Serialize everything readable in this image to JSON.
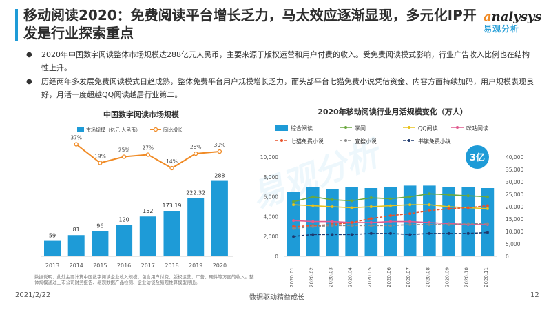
{
  "header": {
    "title": "移动阅读2020：免费阅读平台增长乏力，马太效应逐渐显现，多元化IP开发是行业探索重点",
    "logo_text_a": "a",
    "logo_text_rest": "nalysys",
    "logo_cn": "易观分析"
  },
  "bullets": [
    "2020年中国数字阅读整体市场规模达288亿元人民币，主要来源于版权运营和用户付费的收入。受免费阅读模式影响，行业广告收入比例也在结构性上升。",
    "历经两年多发展免费阅读模式日趋成熟，整体免费平台用户规模增长乏力，而头部平台七猫免费小说凭借资金、内容方面持续加码，用户规模表现良好，月活一度超越QQ阅读越居行业第二。"
  ],
  "watermark": "易观分析",
  "footer": {
    "date": "2021/2/22",
    "center": "数据驱动精益成长",
    "page": "12"
  },
  "note": "数据说明：此处主要计算中国数字阅读企业收入规模，包含用户付费、版权运营、广告、硬件等方面的收入。整体规模通过上市公司财务报告、易观数据产品检测、企业访谈及易观推算模型得出。",
  "colors": {
    "blue": "#1e9bd7",
    "orange": "#f08a24",
    "green": "#6aa83e",
    "yellow": "#e8c21b",
    "pink": "#e05a8e",
    "red_orange": "#e8532c",
    "gray": "#8a8a8a",
    "navy": "#1f3a6e"
  },
  "chart_data": [
    {
      "type": "bar",
      "title": "中国数字阅读市场规模",
      "categories": [
        "2013",
        "2014",
        "2015",
        "2016",
        "2017",
        "2018",
        "2019",
        "2020"
      ],
      "series": [
        {
          "name": "市场规模（亿元 人民币）",
          "values": [
            59,
            81,
            96,
            120,
            152,
            173.19,
            222.32,
            288
          ]
        },
        {
          "name": "同比增长",
          "type": "line",
          "values": [
            37,
            19,
            25,
            27,
            14,
            28,
            30
          ],
          "x": [
            "2014",
            "2015",
            "2016",
            "2017",
            "2018",
            "2019",
            "2020"
          ],
          "unit": "%"
        }
      ],
      "value_labels": [
        "59",
        "81",
        "96",
        "120",
        "152",
        "173.19",
        "222.32",
        "288"
      ],
      "growth_labels": [
        "37%",
        "19%",
        "25%",
        "27%",
        "14%",
        "28%",
        "30%"
      ],
      "ylim": [
        0,
        300
      ]
    },
    {
      "type": "bar",
      "title": "2020年移动阅读行业月活规模变化（万人）",
      "categories": [
        "2020.01",
        "2020.02",
        "2020.03",
        "2020.04",
        "2020.05",
        "2020.06",
        "2020.07",
        "2020.08",
        "2020.09",
        "2020.10",
        "2020.11"
      ],
      "series": [
        {
          "name": "综合阅读",
          "axis": "right",
          "values": [
            26000,
            28000,
            27000,
            28000,
            27500,
            28000,
            28500,
            28500,
            28000,
            28000,
            27500
          ]
        },
        {
          "name": "掌阅",
          "axis": "left",
          "values": [
            5500,
            6000,
            5700,
            5600,
            5900,
            5800,
            6000,
            6300,
            6200,
            6100,
            6000
          ]
        },
        {
          "name": "QQ阅读",
          "axis": "left",
          "values": [
            5200,
            5100,
            5000,
            4900,
            5000,
            5100,
            5200,
            5200,
            5000,
            4900,
            4800
          ]
        },
        {
          "name": "咪咕阅读",
          "axis": "left",
          "values": [
            3600,
            3500,
            3500,
            3400,
            3400,
            3500,
            3500,
            3400,
            3300,
            3200,
            3200
          ]
        },
        {
          "name": "七猫免费小说",
          "axis": "left",
          "values": [
            3000,
            3100,
            3200,
            3400,
            3800,
            4100,
            4300,
            4600,
            4800,
            4900,
            5100
          ]
        },
        {
          "name": "宜搜小说",
          "axis": "left",
          "values": [
            2800,
            3000,
            3100,
            3100,
            3100,
            3100,
            3200,
            3200,
            3200,
            3300,
            3300
          ]
        },
        {
          "name": "书旗免费小说",
          "axis": "left",
          "values": [
            2000,
            2200,
            2200,
            2200,
            2300,
            2300,
            2200,
            2300,
            2300,
            2300,
            2400
          ]
        }
      ],
      "y_left": {
        "min": 0,
        "max": 10000,
        "ticks": [
          "0",
          "2,000",
          "4,000",
          "6,000",
          "8,000",
          "10,000"
        ]
      },
      "y_right": {
        "min": 0,
        "max": 40000,
        "ticks": [
          "0",
          "5,000",
          "10,000",
          "15,000",
          "20,000",
          "25,000",
          "30,000",
          "35,000",
          "40,000"
        ]
      },
      "annotation": "3亿"
    }
  ]
}
